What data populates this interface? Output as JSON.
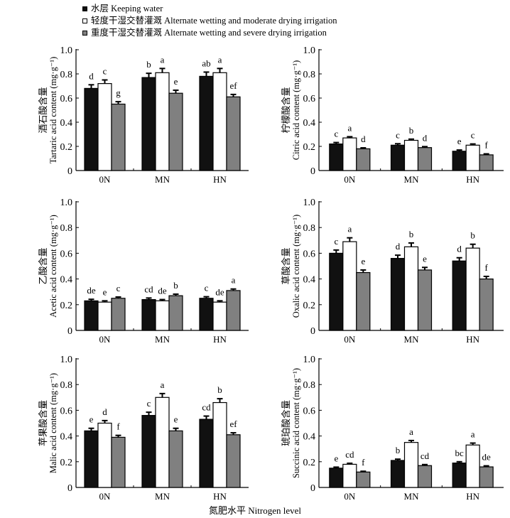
{
  "legend": [
    {
      "label": "水层 Keeping water",
      "color": "#111111"
    },
    {
      "label": "轻度干湿交替灌溉 Alternate  wetting and moderate drying irrigation",
      "color": "#ffffff"
    },
    {
      "label": "重度干湿交替灌溉 Alternate  wetting and severe drying irrigation",
      "color": "#808080"
    }
  ],
  "xlabel": "氮肥水平 Nitrogen level",
  "chart_data": [
    {
      "type": "bar",
      "title": "",
      "ylabel_cn": "酒石酸含量",
      "ylabel_en": "Tartaric acid content (mg·g⁻¹)",
      "categories": [
        "0N",
        "MN",
        "HN"
      ],
      "ylim": [
        0,
        1.0
      ],
      "yticks": [
        "0",
        "0.2",
        "0.4",
        "0.6",
        "0.8",
        "1.0"
      ],
      "series": [
        {
          "name": "Keeping water",
          "values": [
            0.68,
            0.77,
            0.78
          ],
          "errors": [
            0.03,
            0.035,
            0.035
          ],
          "letters": [
            "d",
            "b",
            "ab"
          ]
        },
        {
          "name": "Alternate wetting and moderate drying irrigation",
          "values": [
            0.72,
            0.81,
            0.81
          ],
          "errors": [
            0.03,
            0.035,
            0.035
          ],
          "letters": [
            "c",
            "a",
            "a"
          ]
        },
        {
          "name": "Alternate wetting and severe drying irrigation",
          "values": [
            0.55,
            0.64,
            0.61
          ],
          "errors": [
            0.02,
            0.025,
            0.02
          ],
          "letters": [
            "g",
            "e",
            "ef"
          ]
        }
      ]
    },
    {
      "type": "bar",
      "title": "",
      "ylabel_cn": "柠檬酸含量",
      "ylabel_en": "Citric acid content (mg·g⁻¹)",
      "categories": [
        "0N",
        "MN",
        "HN"
      ],
      "ylim": [
        0,
        1.0
      ],
      "yticks": [
        "0",
        "0.2",
        "0.4",
        "0.6",
        "0.8",
        "1.0"
      ],
      "series": [
        {
          "name": "Keeping water",
          "values": [
            0.22,
            0.21,
            0.16
          ],
          "errors": [
            0.012,
            0.012,
            0.01
          ],
          "letters": [
            "c",
            "c",
            "e"
          ]
        },
        {
          "name": "Alternate wetting and moderate drying irrigation",
          "values": [
            0.27,
            0.25,
            0.21
          ],
          "errors": [
            0.01,
            0.01,
            0.01
          ],
          "letters": [
            "a",
            "b",
            "c"
          ]
        },
        {
          "name": "Alternate wetting and severe drying irrigation",
          "values": [
            0.18,
            0.19,
            0.13
          ],
          "errors": [
            0.008,
            0.008,
            0.008
          ],
          "letters": [
            "d",
            "d",
            "f"
          ]
        }
      ]
    },
    {
      "type": "bar",
      "title": "",
      "ylabel_cn": "乙酸含量",
      "ylabel_en": "Acetic acid content (mg·g⁻¹)",
      "categories": [
        "0N",
        "MN",
        "HN"
      ],
      "ylim": [
        0,
        1.0
      ],
      "yticks": [
        "0",
        "0.2",
        "0.4",
        "0.6",
        "0.8",
        "1.0"
      ],
      "series": [
        {
          "name": "Keeping water",
          "values": [
            0.23,
            0.24,
            0.25
          ],
          "errors": [
            0.012,
            0.012,
            0.012
          ],
          "letters": [
            "de",
            "cd",
            "c"
          ]
        },
        {
          "name": "Alternate wetting and moderate drying irrigation",
          "values": [
            0.22,
            0.23,
            0.22
          ],
          "errors": [
            0.01,
            0.01,
            0.01
          ],
          "letters": [
            "e",
            "de",
            "de"
          ]
        },
        {
          "name": "Alternate wetting and severe drying irrigation",
          "values": [
            0.25,
            0.27,
            0.31
          ],
          "errors": [
            0.01,
            0.012,
            0.012
          ],
          "letters": [
            "c",
            "b",
            "a"
          ]
        }
      ]
    },
    {
      "type": "bar",
      "title": "",
      "ylabel_cn": "草酸含量",
      "ylabel_en": "Oxalic acid content (mg·g⁻¹)",
      "categories": [
        "0N",
        "MN",
        "HN"
      ],
      "ylim": [
        0,
        1.0
      ],
      "yticks": [
        "0",
        "0.2",
        "0.4",
        "0.6",
        "0.8",
        "1.0"
      ],
      "series": [
        {
          "name": "Keeping water",
          "values": [
            0.6,
            0.56,
            0.54
          ],
          "errors": [
            0.025,
            0.025,
            0.025
          ],
          "letters": [
            "c",
            "d",
            "d"
          ]
        },
        {
          "name": "Alternate wetting and moderate drying irrigation",
          "values": [
            0.69,
            0.65,
            0.64
          ],
          "errors": [
            0.03,
            0.03,
            0.03
          ],
          "letters": [
            "a",
            "b",
            "b"
          ]
        },
        {
          "name": "Alternate wetting and severe drying irrigation",
          "values": [
            0.45,
            0.47,
            0.4
          ],
          "errors": [
            0.02,
            0.02,
            0.02
          ],
          "letters": [
            "e",
            "e",
            "f"
          ]
        }
      ]
    },
    {
      "type": "bar",
      "title": "",
      "ylabel_cn": "苹果酸含量",
      "ylabel_en": "Malic acid content (mg·g⁻¹)",
      "categories": [
        "0N",
        "MN",
        "HN"
      ],
      "ylim": [
        0,
        1.0
      ],
      "yticks": [
        "0",
        "0.2",
        "0.4",
        "0.6",
        "0.8",
        "1.0"
      ],
      "series": [
        {
          "name": "Keeping water",
          "values": [
            0.44,
            0.56,
            0.53
          ],
          "errors": [
            0.02,
            0.025,
            0.025
          ],
          "letters": [
            "e",
            "c",
            "cd"
          ]
        },
        {
          "name": "Alternate wetting and moderate drying irrigation",
          "values": [
            0.5,
            0.7,
            0.66
          ],
          "errors": [
            0.02,
            0.03,
            0.03
          ],
          "letters": [
            "d",
            "a",
            "b"
          ]
        },
        {
          "name": "Alternate wetting and severe drying irrigation",
          "values": [
            0.39,
            0.44,
            0.41
          ],
          "errors": [
            0.015,
            0.02,
            0.015
          ],
          "letters": [
            "f",
            "e",
            "ef"
          ]
        }
      ]
    },
    {
      "type": "bar",
      "title": "",
      "ylabel_cn": "琥珀酸含量",
      "ylabel_en": "Succinic acid content (mg·g⁻¹)",
      "categories": [
        "0N",
        "MN",
        "HN"
      ],
      "ylim": [
        0,
        1.0
      ],
      "yticks": [
        "0",
        "0.2",
        "0.4",
        "0.6",
        "0.8",
        "1.0"
      ],
      "series": [
        {
          "name": "Keeping water",
          "values": [
            0.15,
            0.21,
            0.19
          ],
          "errors": [
            0.008,
            0.01,
            0.01
          ],
          "letters": [
            "e",
            "b",
            "bc"
          ]
        },
        {
          "name": "Alternate wetting and moderate drying irrigation",
          "values": [
            0.18,
            0.35,
            0.33
          ],
          "errors": [
            0.008,
            0.015,
            0.015
          ],
          "letters": [
            "cd",
            "a",
            "a"
          ]
        },
        {
          "name": "Alternate wetting and severe drying irrigation",
          "values": [
            0.12,
            0.17,
            0.16
          ],
          "errors": [
            0.006,
            0.008,
            0.008
          ],
          "letters": [
            "f",
            "cd",
            "de"
          ]
        }
      ]
    }
  ]
}
